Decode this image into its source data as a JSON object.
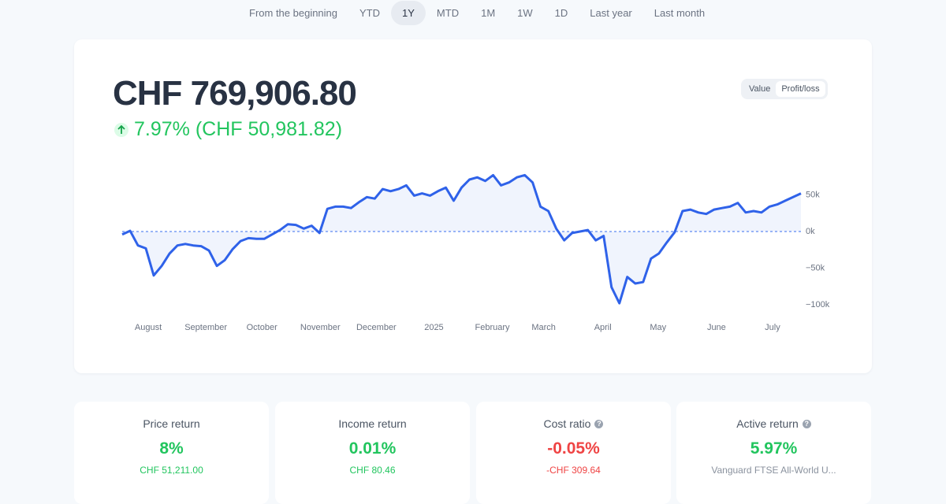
{
  "tabs": [
    "From the beginning",
    "YTD",
    "1Y",
    "MTD",
    "1M",
    "1W",
    "1D",
    "Last year",
    "Last month"
  ],
  "active_tab": 2,
  "header": {
    "value": "CHF 769,906.80",
    "change": "7.97% (CHF 50,981.82)"
  },
  "toggle": {
    "options": [
      "Value",
      "Profit/loss"
    ],
    "active": 1
  },
  "chart_data": {
    "type": "line",
    "series": [
      {
        "color": "#2f62e9",
        "values": [
          -4000,
          1000,
          -19000,
          -23000,
          -60000,
          -47000,
          -30000,
          -19000,
          -17000,
          -19000,
          -20000,
          -26000,
          -47000,
          -39000,
          -24000,
          -13000,
          -9000,
          -10000,
          -10000,
          -4000,
          2000,
          10000,
          9000,
          4000,
          8000,
          -2000,
          31000,
          34000,
          34000,
          32000,
          40000,
          47000,
          45000,
          58000,
          55000,
          58000,
          63000,
          49000,
          52000,
          49000,
          55000,
          60000,
          42000,
          60000,
          71000,
          74000,
          69000,
          77000,
          63000,
          67000,
          74000,
          77000,
          67000,
          34000,
          28000,
          4000,
          -12000,
          -2000,
          0,
          2000,
          -12000,
          -6000,
          -76000,
          -98000,
          -62000,
          -71000,
          -69000,
          -37000,
          -30000,
          -15000,
          -1000,
          28000,
          30000,
          26000,
          24000,
          30000,
          32000,
          34000,
          39000,
          26000,
          28000,
          26000,
          34000,
          37000,
          42000,
          47000,
          52000
        ]
      }
    ],
    "xlim": [
      0,
      86
    ],
    "xticks": [
      {
        "value": 3.3,
        "label": "August"
      },
      {
        "value": 10.6,
        "label": "September"
      },
      {
        "value": 17.7,
        "label": "October"
      },
      {
        "value": 25.1,
        "label": "November"
      },
      {
        "value": 32.2,
        "label": "December"
      },
      {
        "value": 39.5,
        "label": "2025"
      },
      {
        "value": 46.9,
        "label": "February"
      },
      {
        "value": 53.4,
        "label": "March"
      },
      {
        "value": 60.9,
        "label": "April"
      },
      {
        "value": 67.9,
        "label": "May"
      },
      {
        "value": 75.3,
        "label": "June"
      },
      {
        "value": 82.4,
        "label": "July"
      }
    ],
    "ylim": [
      -110000,
      80000
    ],
    "yticks": [
      {
        "value": 50000,
        "label": "50k"
      },
      {
        "value": 0,
        "label": "0k"
      },
      {
        "value": -50000,
        "label": "−50k"
      },
      {
        "value": -100000,
        "label": "−100k"
      }
    ]
  },
  "cards": [
    {
      "title": "Price return",
      "value": "8%",
      "sub": "CHF 51,211.00",
      "tone": "positive"
    },
    {
      "title": "Income return",
      "value": "0.01%",
      "sub": "CHF 80.46",
      "tone": "positive"
    },
    {
      "title": "Cost ratio",
      "value": "-0.05%",
      "sub": "-CHF 309.64",
      "tone": "negative",
      "help": true
    },
    {
      "title": "Active return",
      "value": "5.97%",
      "sub": "Vanguard FTSE All-World U...",
      "tone": "positive-muted",
      "help": true
    }
  ]
}
